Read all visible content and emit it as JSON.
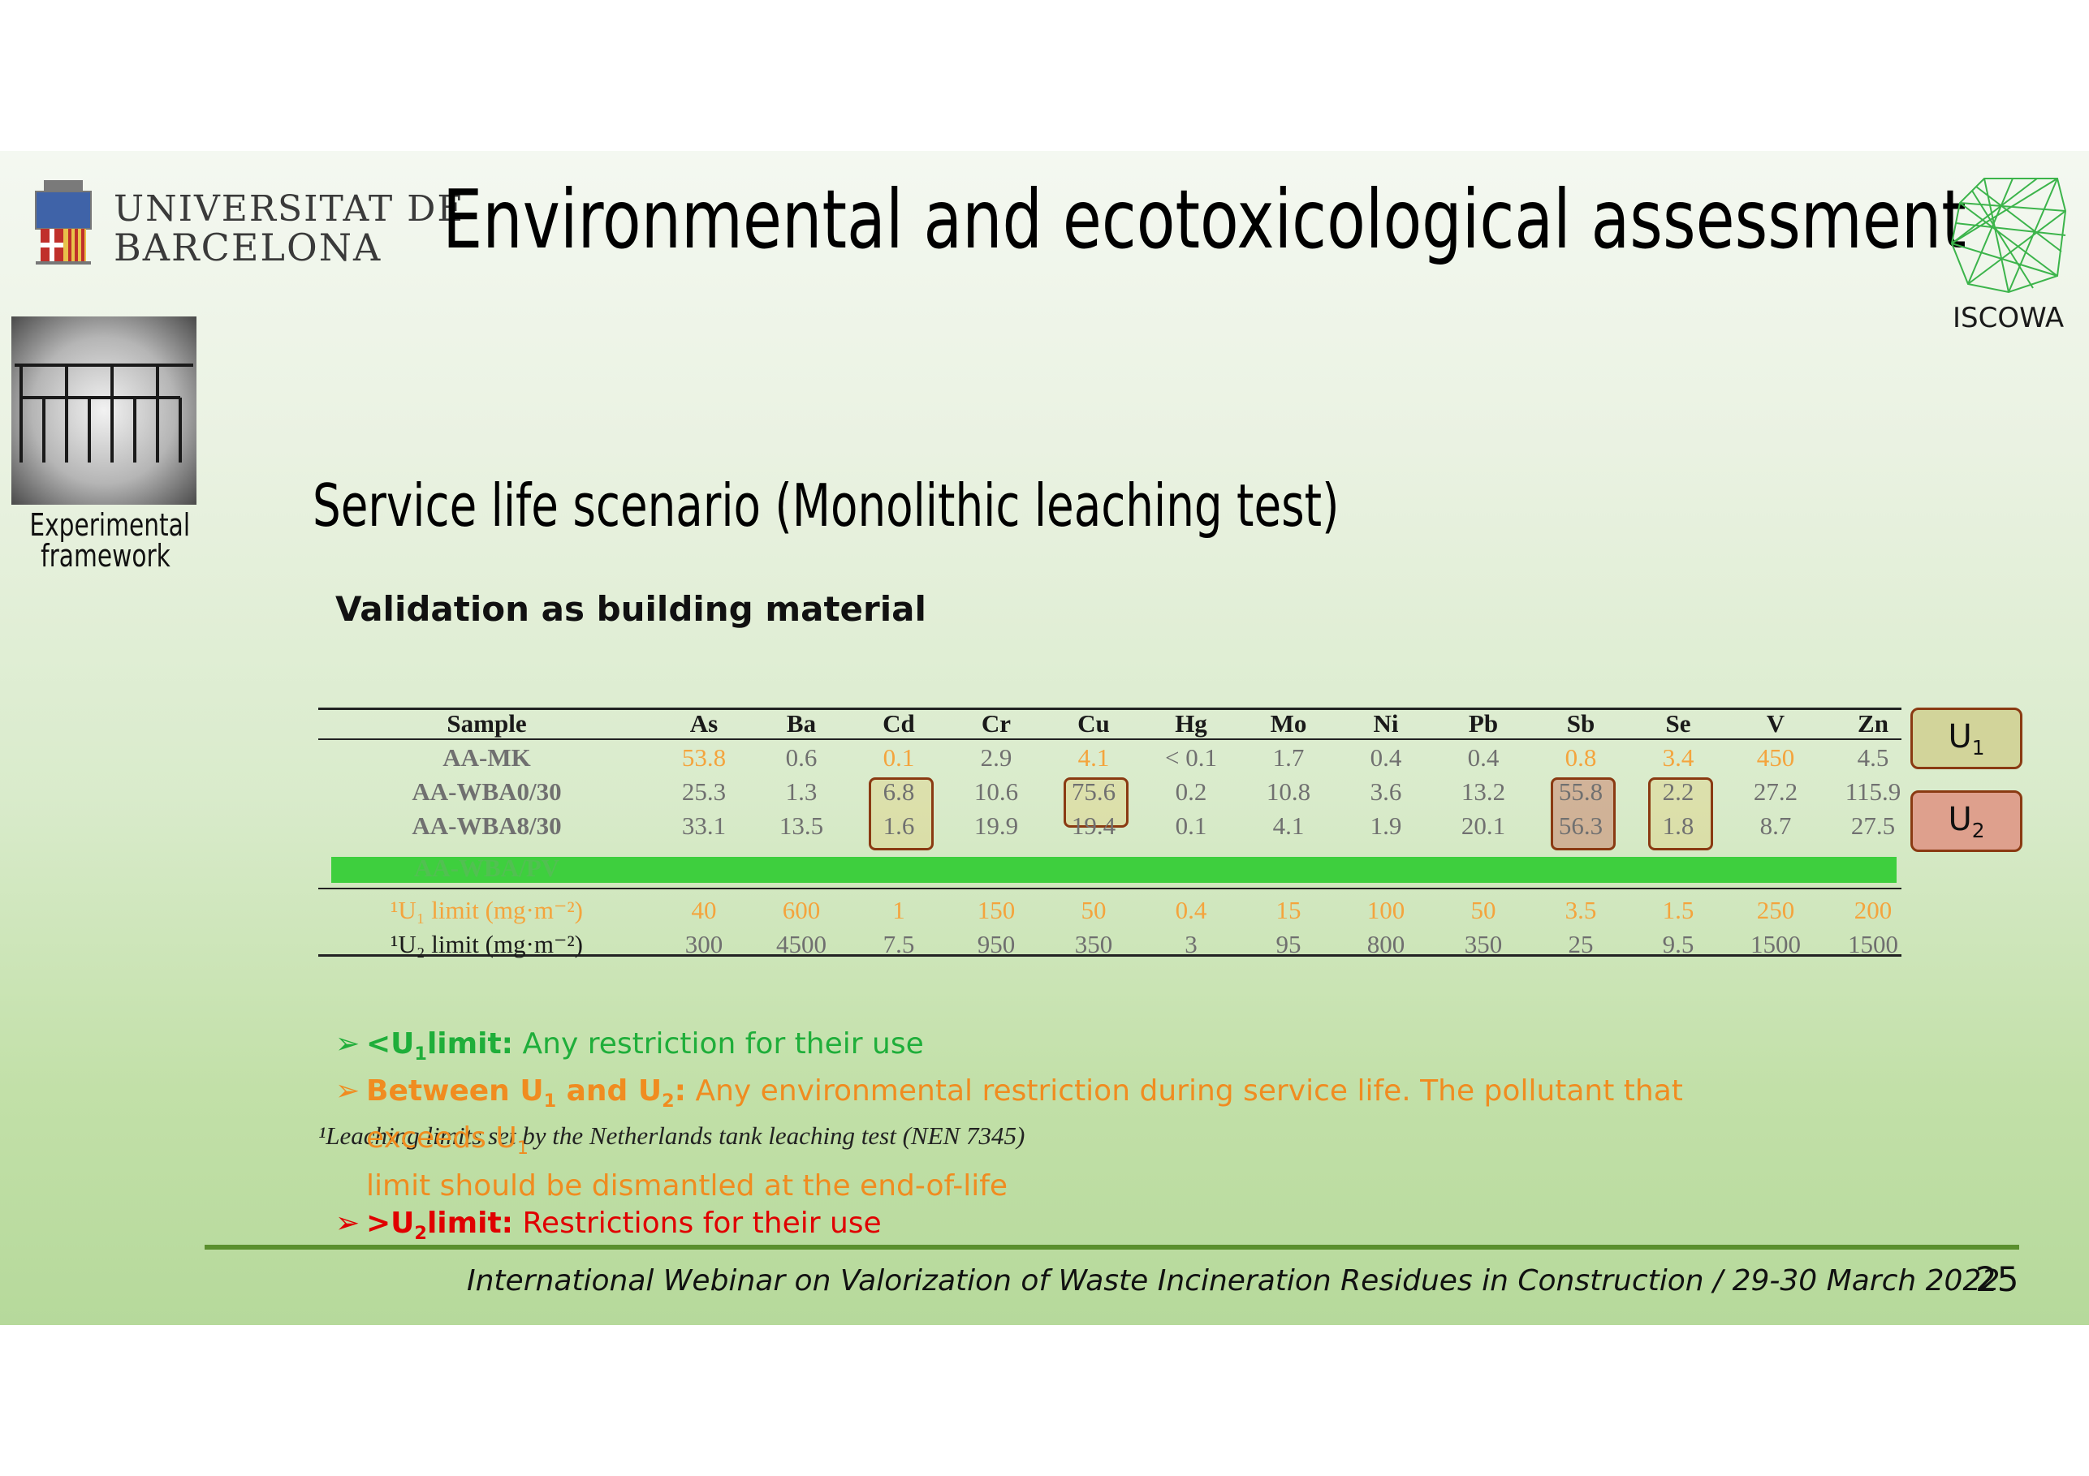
{
  "header": {
    "university_line1": "UNIVERSITAT DE",
    "university_line2": "BARCELONA",
    "title": "Environmental and ecotoxicological assessment",
    "partner_logo": "ISCOWA"
  },
  "sidebar": {
    "label_line1": "Experimental",
    "label_line2": "framework"
  },
  "subtitle": "Service life scenario (Monolithic leaching test)",
  "section_heading": "Validation as building material",
  "table": {
    "headers": [
      "Sample",
      "As",
      "Ba",
      "Cd",
      "Cr",
      "Cu",
      "Hg",
      "Mo",
      "Ni",
      "Pb",
      "Sb",
      "Se",
      "V",
      "Zn"
    ],
    "rows": [
      [
        "AA-MK",
        "53.8",
        "0.6",
        "0.1",
        "2.9",
        "4.1",
        "< 0.1",
        "1.7",
        "0.4",
        "0.4",
        "0.8",
        "3.4",
        "450",
        "4.5"
      ],
      [
        "AA-WBA0/30",
        "25.3",
        "1.3",
        "6.8",
        "10.6",
        "75.6",
        "0.2",
        "10.8",
        "3.6",
        "13.2",
        "55.8",
        "2.2",
        "27.2",
        "115.9"
      ],
      [
        "AA-WBA8/30",
        "33.1",
        "13.5",
        "1.6",
        "19.9",
        "19.4",
        "0.1",
        "4.1",
        "1.9",
        "20.1",
        "56.3",
        "1.8",
        "8.7",
        "27.5"
      ]
    ],
    "ghost_row_label": "AA-WBA/PV",
    "limit_rows": [
      [
        "¹U₁ limit (mg·m⁻²)",
        "40",
        "600",
        "1",
        "150",
        "50",
        "0.4",
        "15",
        "100",
        "50",
        "3.5",
        "1.5",
        "250",
        "200"
      ],
      [
        "¹U₂ limit (mg·m⁻²)",
        "300",
        "4500",
        "7.5",
        "950",
        "350",
        "3",
        "95",
        "800",
        "350",
        "25",
        "9.5",
        "1500",
        "1500"
      ]
    ],
    "footnote": "¹Leaching limits set by the Netherlands tank leaching test (NEN 7345)"
  },
  "legend": {
    "u1": "U",
    "u1_sub": "1",
    "u2": "U",
    "u2_sub": "2"
  },
  "bullets": [
    {
      "lead": "<U",
      "lead_sub": "1",
      "lead_tail": "limit:",
      "text": " Any restriction for their use"
    },
    {
      "lead": "Between U",
      "lead_sub": "1",
      "lead_tail": " and U",
      "lead_sub2": "2",
      "lead_tail2": ":",
      "text": " Any environmental restriction during service life. The pollutant that exceeds U",
      "text_sub": "1",
      "text2": "limit should be dismantled at the end-of-life"
    },
    {
      "lead": ">U",
      "lead_sub": "2",
      "lead_tail": "limit:",
      "text": " Restrictions for their use"
    }
  ],
  "footer": {
    "text": "International Webinar on Valorization of Waste Incineration Residues in Construction / 29-30 March 2022",
    "page_number": "25"
  },
  "colors": {
    "u1_fill": "#d2d49a",
    "u2_fill": "#dea08d",
    "green": "#1fae3a",
    "orange": "#f08c20",
    "red": "#e00000",
    "bar_green": "#3ecf3e"
  }
}
